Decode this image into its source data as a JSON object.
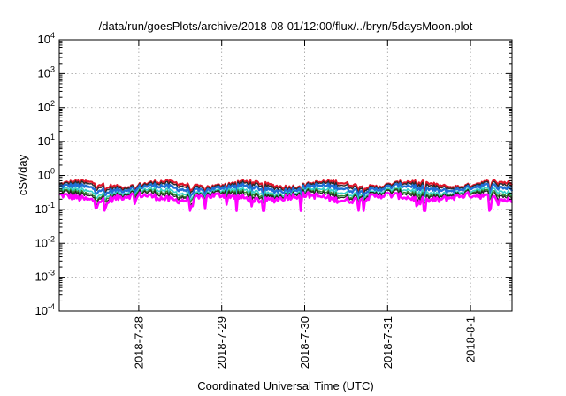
{
  "chart_data": {
    "type": "line",
    "title": "/data/run/goesPlots/archive/2018-08-01/12:00/flux/../bryn/5daysMoon.plot",
    "xlabel": "Coordinated Universal Time (UTC)",
    "ylabel": "cSv/day",
    "yscale": "log",
    "ylim": [
      0.0001,
      10000
    ],
    "xlim": [
      "2018-07-27 01:00",
      "2018-08-01 12:00"
    ],
    "grid": true,
    "legend": "none",
    "y_ticks": [
      {
        "base": "10",
        "exp": "4"
      },
      {
        "base": "10",
        "exp": "3"
      },
      {
        "base": "10",
        "exp": "2"
      },
      {
        "base": "10",
        "exp": "1"
      },
      {
        "base": "10",
        "exp": "0"
      },
      {
        "base": "10",
        "exp": "-1"
      },
      {
        "base": "10",
        "exp": "-2"
      },
      {
        "base": "10",
        "exp": "-3"
      },
      {
        "base": "10",
        "exp": "-4"
      }
    ],
    "x_ticks": [
      "2018-7-28",
      "2018-7-29",
      "2018-7-30",
      "2018-7-31",
      "2018-8-1"
    ],
    "x_ticks_iso": [
      "2018-07-28",
      "2018-07-29",
      "2018-07-30",
      "2018-07-31",
      "2018-08-01"
    ],
    "x_start_iso": "2018-07-27T01:00:00Z",
    "x_end_iso": "2018-08-01T12:00:00Z",
    "series": [
      {
        "color": "#e0162b",
        "typical": 0.55,
        "width": 2.2
      },
      {
        "color": "#2a2a2a",
        "typical": 0.5,
        "width": 1.4
      },
      {
        "color": "#1f6fd6",
        "typical": 0.42,
        "width": 2.4
      },
      {
        "color": "#35d0c8",
        "typical": 0.33,
        "width": 1.6
      },
      {
        "color": "#2c8a2c",
        "typical": 0.29,
        "width": 1.4
      },
      {
        "color": "#222222",
        "typical": 0.27,
        "width": 1.2
      },
      {
        "color": "#ff00ff",
        "typical": 0.22,
        "width": 2.6
      }
    ]
  }
}
